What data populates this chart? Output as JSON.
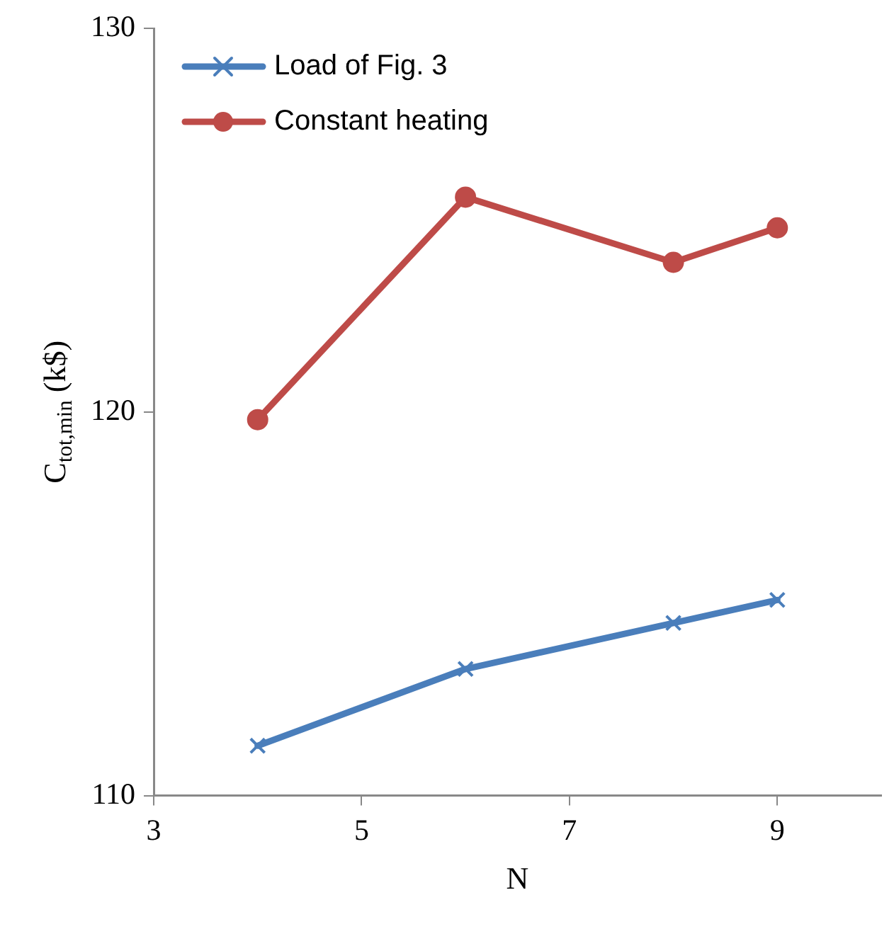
{
  "chart_data": {
    "type": "line",
    "xlabel": "N",
    "ylabel": "C$_{tot,min}$ (k$)",
    "x": [
      4,
      6,
      8,
      9
    ],
    "series": [
      {
        "name": "Load of Fig. 3",
        "color": "#4a7ebb",
        "marker": "cross",
        "values": [
          111.3,
          113.3,
          114.5,
          115.1
        ]
      },
      {
        "name": "Constant heating",
        "color": "#be4b48",
        "marker": "circle",
        "values": [
          119.8,
          125.6,
          123.9,
          124.8
        ]
      }
    ],
    "xlim": [
      3,
      10
    ],
    "xticks": [
      3,
      5,
      7,
      9
    ],
    "ylim": [
      110,
      130
    ],
    "yticks": [
      110,
      120,
      130
    ],
    "grid": false,
    "legend": "top left",
    "line_style": "solid"
  }
}
